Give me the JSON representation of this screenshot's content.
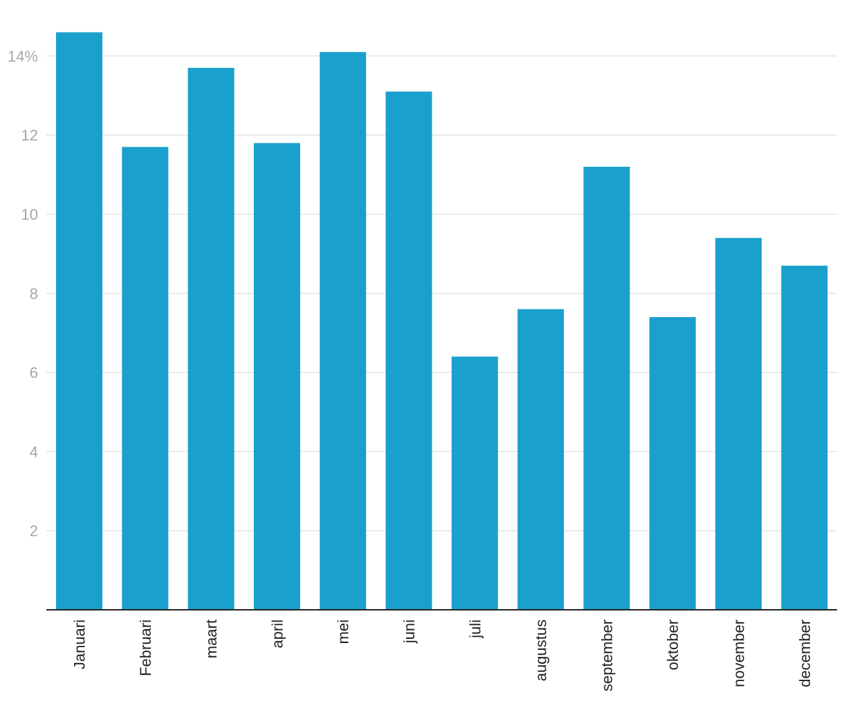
{
  "chart_data": {
    "type": "bar",
    "categories": [
      "Januari",
      "Februari",
      "maart",
      "april",
      "mei",
      "juni",
      "juli",
      "augustus",
      "september",
      "oktober",
      "november",
      "december"
    ],
    "series": [
      {
        "values": [
          14.6,
          11.7,
          13.7,
          11.8,
          14.1,
          13.1,
          6.4,
          7.6,
          11.2,
          7.4,
          9.4,
          8.7
        ]
      }
    ],
    "y_ticks": [
      2,
      4,
      6,
      8,
      10,
      12,
      14
    ],
    "y_tick_labels": [
      "2",
      "4",
      "6",
      "8",
      "10",
      "12",
      "14%"
    ],
    "ylim": [
      0,
      14.6
    ],
    "grid": true,
    "title": "",
    "xlabel": "",
    "ylabel": "",
    "colors": {
      "bar": "#1aa0cd",
      "grid": "#e3e3e3",
      "axis": "#222222",
      "y_tick_text": "#a6a6a6",
      "x_tick_text": "#222222"
    }
  }
}
